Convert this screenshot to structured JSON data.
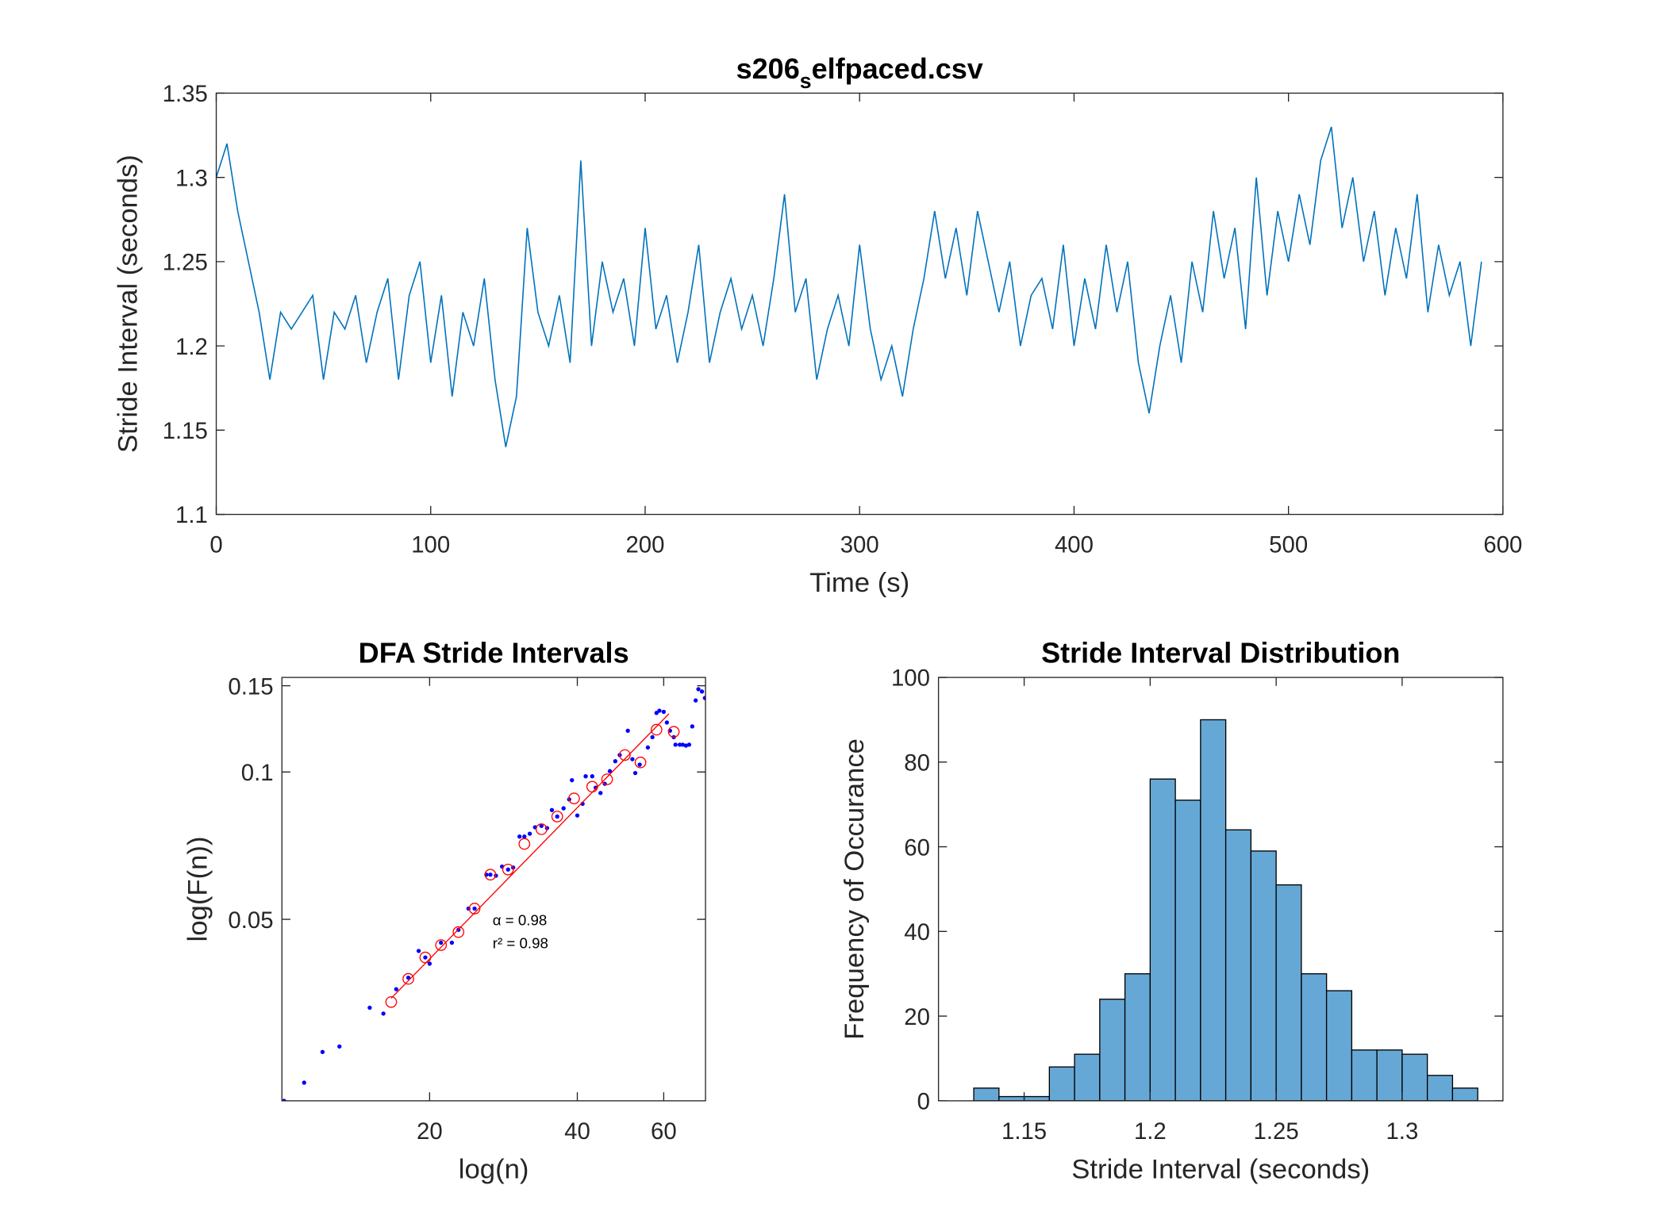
{
  "chart_data": [
    {
      "type": "line",
      "title": [
        "s206",
        "s",
        "elfpaced.csv"
      ],
      "xlabel": "Time (s)",
      "ylabel": "Stride Interval (seconds)",
      "color": "#0072bd",
      "xlim": [
        0,
        600
      ],
      "xticks": [
        0,
        100,
        200,
        300,
        400,
        500,
        600
      ],
      "ylim": [
        1.1,
        1.35
      ],
      "yticks": [
        1.1,
        1.15,
        1.2,
        1.25,
        1.3,
        1.35
      ],
      "x": [
        0,
        5,
        10,
        15,
        20,
        25,
        30,
        35,
        40,
        45,
        50,
        55,
        60,
        65,
        70,
        75,
        80,
        85,
        90,
        95,
        100,
        105,
        110,
        115,
        120,
        125,
        130,
        135,
        140,
        145,
        150,
        155,
        160,
        165,
        170,
        175,
        180,
        185,
        190,
        195,
        200,
        205,
        210,
        215,
        220,
        225,
        230,
        235,
        240,
        245,
        250,
        255,
        260,
        265,
        270,
        275,
        280,
        285,
        290,
        295,
        300,
        305,
        310,
        315,
        320,
        325,
        330,
        335,
        340,
        345,
        350,
        355,
        360,
        365,
        370,
        375,
        380,
        385,
        390,
        395,
        400,
        405,
        410,
        415,
        420,
        425,
        430,
        435,
        440,
        445,
        450,
        455,
        460,
        465,
        470,
        475,
        480,
        485,
        490,
        495,
        500,
        505,
        510,
        515,
        520,
        525,
        530,
        535,
        540,
        545,
        550,
        555,
        560,
        565,
        570,
        575,
        580,
        585,
        590
      ],
      "values": [
        1.3,
        1.32,
        1.28,
        1.25,
        1.22,
        1.18,
        1.22,
        1.21,
        1.22,
        1.23,
        1.18,
        1.22,
        1.21,
        1.23,
        1.19,
        1.22,
        1.24,
        1.18,
        1.23,
        1.25,
        1.19,
        1.23,
        1.17,
        1.22,
        1.2,
        1.24,
        1.18,
        1.14,
        1.17,
        1.27,
        1.22,
        1.2,
        1.23,
        1.19,
        1.31,
        1.2,
        1.25,
        1.22,
        1.24,
        1.2,
        1.27,
        1.21,
        1.23,
        1.19,
        1.22,
        1.26,
        1.19,
        1.22,
        1.24,
        1.21,
        1.23,
        1.2,
        1.24,
        1.29,
        1.22,
        1.24,
        1.18,
        1.21,
        1.23,
        1.2,
        1.26,
        1.21,
        1.18,
        1.2,
        1.17,
        1.21,
        1.24,
        1.28,
        1.24,
        1.27,
        1.23,
        1.28,
        1.25,
        1.22,
        1.25,
        1.2,
        1.23,
        1.24,
        1.21,
        1.26,
        1.2,
        1.24,
        1.21,
        1.26,
        1.22,
        1.25,
        1.19,
        1.16,
        1.2,
        1.23,
        1.19,
        1.25,
        1.22,
        1.28,
        1.24,
        1.27,
        1.21,
        1.3,
        1.23,
        1.28,
        1.25,
        1.29,
        1.26,
        1.31,
        1.33,
        1.27,
        1.3,
        1.25,
        1.28,
        1.23,
        1.27,
        1.24,
        1.29,
        1.22,
        1.26,
        1.23,
        1.25,
        1.2,
        1.25
      ]
    },
    {
      "type": "scatter",
      "title": "DFA Stride Intervals",
      "xlabel": "log(n)",
      "ylabel": "log(F(n))",
      "xscale": "log",
      "yscale": "log",
      "xlim": [
        10,
        73
      ],
      "xticks": [
        20,
        40,
        60
      ],
      "ylim": [
        0.0213,
        0.156
      ],
      "yticks": [
        0.05,
        0.1,
        0.15
      ],
      "annotations": [
        "α = 0.98",
        "r² = 0.98"
      ],
      "series": [
        {
          "marker": "dot",
          "color": "#0000ff",
          "x": [
            10.1,
            11.1,
            12.1,
            13.1,
            15.1,
            16.1,
            17.1,
            18.1,
            19.0,
            19.6,
            20.0,
            21.1,
            22.2,
            22.9,
            24.0,
            24.7,
            26.1,
            26.6,
            27.3,
            28.1,
            28.9,
            29.6,
            30.5,
            31.2,
            32.0,
            32.8,
            33.8,
            34.7,
            35.5,
            36.4,
            37.5,
            38.5,
            39.0,
            40.0,
            41.0,
            41.6,
            42.9,
            43.6,
            44.6,
            45.5,
            46.6,
            47.8,
            48.8,
            50.7,
            51.8,
            52.5,
            53.6,
            55.7,
            56.9,
            58.0,
            58.8,
            60.0,
            60.9,
            61.8,
            62.9,
            63.4,
            64.7,
            65.6,
            66.6,
            67.6,
            68.6,
            69.7,
            70.6,
            71.8,
            72.8
          ],
          "values": [
            0.0213,
            0.0232,
            0.0268,
            0.0275,
            0.033,
            0.0321,
            0.036,
            0.038,
            0.0431,
            0.0418,
            0.0406,
            0.0448,
            0.0448,
            0.0476,
            0.0526,
            0.0526,
            0.0617,
            0.0617,
            0.0614,
            0.0641,
            0.0632,
            0.0638,
            0.0738,
            0.0738,
            0.0748,
            0.0771,
            0.0776,
            0.0768,
            0.0836,
            0.0811,
            0.0843,
            0.0879,
            0.0962,
            0.0815,
            0.0861,
            0.098,
            0.098,
            0.0929,
            0.0906,
            0.0946,
            0.1004,
            0.1052,
            0.1083,
            0.1214,
            0.1062,
            0.0995,
            0.1035,
            0.1122,
            0.1178,
            0.132,
            0.1334,
            0.1327,
            0.1262,
            0.1214,
            0.1178,
            0.1137,
            0.1137,
            0.1137,
            0.1132,
            0.1137,
            0.1239,
            0.14,
            0.1476,
            0.146,
            0.1416
          ]
        },
        {
          "marker": "circle",
          "color": "#ff0000",
          "x": [
            16.7,
            18.1,
            19.6,
            21.1,
            22.9,
            24.7,
            26.6,
            28.9,
            31.2,
            33.8,
            36.4,
            39.4,
            42.9,
            46.0,
            50.0,
            53.8,
            58.0,
            62.9
          ],
          "values": [
            0.0339,
            0.0378,
            0.0418,
            0.0443,
            0.0471,
            0.0526,
            0.0617,
            0.0632,
            0.0713,
            0.0764,
            0.0811,
            0.0883,
            0.0933,
            0.0966,
            0.1083,
            0.1046,
            0.122,
            0.1208
          ]
        },
        {
          "marker": "line",
          "color": "#ff0000",
          "x": [
            16.7,
            61.5
          ],
          "values": [
            0.0345,
            0.1315
          ]
        }
      ]
    },
    {
      "type": "histogram",
      "title": "Stride Interval Distribution",
      "xlabel": "Stride Interval (seconds)",
      "ylabel": "Frequency of Occurance",
      "color": "#66a8d5",
      "xlim": [
        1.116,
        1.34
      ],
      "xticks": [
        1.15,
        1.2,
        1.25,
        1.3
      ],
      "ylim": [
        0,
        100
      ],
      "yticks": [
        0,
        20,
        40,
        60,
        80,
        100
      ],
      "bins": [
        1.13,
        1.14,
        1.15,
        1.16,
        1.17,
        1.18,
        1.19,
        1.2,
        1.21,
        1.22,
        1.23,
        1.24,
        1.25,
        1.26,
        1.27,
        1.28,
        1.29,
        1.3,
        1.31,
        1.32,
        1.33
      ],
      "values": [
        3,
        1,
        1,
        8,
        11,
        24,
        30,
        76,
        71,
        90,
        64,
        59,
        51,
        30,
        26,
        12,
        12,
        11,
        6,
        3
      ]
    }
  ]
}
